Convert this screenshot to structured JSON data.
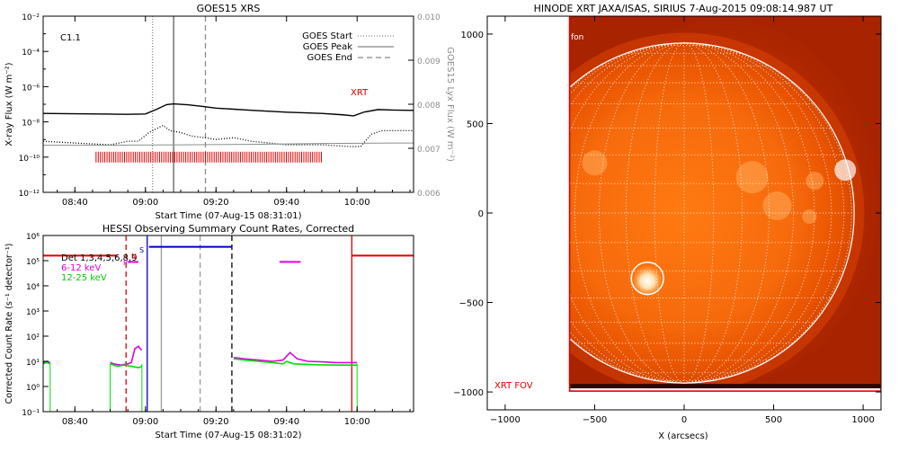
{
  "colors": {
    "axis": "#000000",
    "goes_lo": "#000000",
    "goes_hi": "#000000",
    "lyx": "#8c8c8c",
    "xrt_marks": "#e00000",
    "red": "#e00000",
    "magenta": "#e000e0",
    "green": "#00e000",
    "blue": "#0000cc",
    "gray": "#9a9a9a",
    "sun_outer": "#a82400",
    "sun_mid": "#e24a00",
    "sun_inner": "#ff7a10",
    "grid": "#ffffff"
  },
  "chart_data": [
    {
      "id": "goes",
      "type": "line",
      "title": "GOES15 XRS",
      "xlabel": "Start Time (07-Aug-15 08:31:01)",
      "ylabel": "X-ray Flux (W m⁻²)",
      "y2label": "GOES15 Lyx Flux (W m⁻²)",
      "x_unit": "minutes after 08:00",
      "xlim": [
        31,
        136
      ],
      "x_ticks": [
        40,
        60,
        80,
        100,
        120
      ],
      "x_tick_labels": [
        "08:40",
        "09:00",
        "09:20",
        "09:40",
        "10:00"
      ],
      "ylim_log": [
        -12,
        -2
      ],
      "y_ticks": [
        -12,
        -10,
        -8,
        -6,
        -4,
        -2
      ],
      "y_tick_labels": [
        "10⁻¹²",
        "10⁻¹⁰",
        "10⁻⁸",
        "10⁻⁶",
        "10⁻⁴",
        "10⁻²"
      ],
      "y2lim": [
        0.006,
        0.01
      ],
      "y2_ticks": [
        0.006,
        0.007,
        0.008,
        0.009,
        0.01
      ],
      "y2_tick_labels": [
        "0.006",
        "0.007",
        "0.008",
        "0.009",
        "0.010"
      ],
      "annotation_class": "C1.1",
      "annotation_xrt": "XRT",
      "legend": [
        "GOES Start",
        "GOES Peak",
        "GOES End"
      ],
      "vlines": [
        {
          "x": 62,
          "style": "dotted"
        },
        {
          "x": 68,
          "style": "solid"
        },
        {
          "x": 77,
          "style": "dashed"
        }
      ],
      "series": [
        {
          "id": "goes_long",
          "style": "solid",
          "x": [
            31,
            40,
            50,
            55,
            60,
            63,
            66,
            68,
            72,
            76,
            80,
            90,
            100,
            110,
            116,
            119,
            122,
            126,
            130,
            136
          ],
          "y": [
            -7.52,
            -7.54,
            -7.56,
            -7.57,
            -7.55,
            -7.3,
            -7.02,
            -6.98,
            -7.03,
            -7.12,
            -7.22,
            -7.34,
            -7.45,
            -7.52,
            -7.6,
            -7.66,
            -7.44,
            -7.3,
            -7.33,
            -7.35
          ]
        },
        {
          "id": "goes_short",
          "style": "dotted",
          "x": [
            31,
            40,
            50,
            55,
            58,
            61,
            63,
            65,
            67,
            70,
            73,
            77,
            80,
            85,
            90,
            95,
            100,
            105,
            110,
            118,
            121,
            124,
            127,
            130,
            136
          ],
          "y": [
            -9.1,
            -9.2,
            -9.3,
            -9.1,
            -9.1,
            -8.6,
            -8.4,
            -8.2,
            -8.5,
            -8.6,
            -8.8,
            -8.9,
            -9.0,
            -8.9,
            -9.1,
            -9.2,
            -9.3,
            -9.3,
            -9.3,
            -9.4,
            -9.4,
            -8.7,
            -8.5,
            -8.5,
            -8.5
          ]
        },
        {
          "id": "lyx",
          "style": "solid-gray",
          "axis": "y2",
          "x": [
            31,
            50,
            70,
            90,
            110,
            130,
            136
          ],
          "y": [
            0.00707,
            0.00707,
            0.00708,
            0.00709,
            0.00711,
            0.00712,
            0.00712
          ]
        }
      ],
      "xrt_coverage": {
        "y_log": -10.0,
        "x_start": 46,
        "x_end": 110,
        "spacing_minutes": 0.62
      }
    },
    {
      "id": "hessi",
      "type": "line",
      "title": "HESSI Observing Summary Count Rates, Corrected",
      "xlabel": "Start Time (07-Aug-15 08:31:02)",
      "ylabel": "Corrected Count Rate (s⁻¹ detector⁻¹)",
      "x_unit": "minutes after 08:00",
      "xlim": [
        31,
        136
      ],
      "x_ticks": [
        40,
        60,
        80,
        100,
        120
      ],
      "x_tick_labels": [
        "08:40",
        "09:00",
        "09:20",
        "09:40",
        "10:00"
      ],
      "ylim_log": [
        -1,
        6
      ],
      "y_ticks": [
        -1,
        0,
        1,
        2,
        3,
        4,
        5,
        6
      ],
      "y_tick_labels": [
        "10⁻¹",
        "10⁰",
        "10¹",
        "10²",
        "10³",
        "10⁴",
        "10⁵",
        "10⁶"
      ],
      "legend": [
        "Det 1,3,4,5,6,8,9",
        "6-12 keV",
        "12-25 keV"
      ],
      "flag_letters": {
        "p": "P",
        "n": "N",
        "s": "S"
      },
      "series": [
        {
          "id": "h_6_12",
          "name": "6-12 keV",
          "segments": [
            {
              "x": [
                31,
                32,
                33
              ],
              "y": [
                0.95,
                1.0,
                0.95
              ]
            },
            {
              "x": [
                50,
                51,
                53,
                55,
                56,
                57,
                57.5,
                58,
                58.5,
                59
              ],
              "y": [
                0.95,
                0.9,
                0.85,
                0.9,
                0.95,
                1.5,
                1.55,
                1.6,
                1.5,
                1.45
              ]
            },
            {
              "x": [
                85,
                88,
                92,
                96,
                99,
                101,
                103,
                106,
                110,
                114,
                118,
                120
              ],
              "y": [
                1.15,
                1.1,
                1.05,
                1.0,
                1.05,
                1.35,
                1.1,
                1.0,
                0.98,
                0.95,
                0.95,
                0.95
              ]
            }
          ]
        },
        {
          "id": "h_12_25",
          "name": "12-25 keV",
          "segments": [
            {
              "x": [
                31,
                32,
                33
              ],
              "y": [
                0.9,
                0.95,
                0.9
              ]
            },
            {
              "x": [
                50,
                52,
                54,
                56,
                58,
                59
              ],
              "y": [
                0.9,
                0.8,
                0.85,
                0.8,
                0.75,
                0.8
              ]
            },
            {
              "x": [
                85,
                88,
                92,
                96,
                99,
                100,
                102,
                105,
                110,
                115,
                120
              ],
              "y": [
                1.1,
                1.05,
                1.0,
                0.95,
                0.9,
                1.0,
                0.9,
                0.88,
                0.86,
                0.85,
                0.85
              ]
            }
          ]
        }
      ],
      "drops": [
        33,
        50,
        59,
        120
      ],
      "vlines": [
        {
          "x": 54.5,
          "style": "dashed",
          "color": "red"
        },
        {
          "x": 60.5,
          "style": "solid",
          "color": "blue"
        },
        {
          "x": 64.5,
          "style": "solid",
          "color": "gray"
        },
        {
          "x": 75.5,
          "style": "dashed",
          "color": "gray"
        },
        {
          "x": 84.5,
          "style": "dashed",
          "color": "black"
        },
        {
          "x": 118.5,
          "style": "solid",
          "color": "red"
        }
      ],
      "flag_bars": [
        {
          "color": "red",
          "x": [
            31,
            52
          ],
          "y_log": 5.2
        },
        {
          "color": "blue",
          "x": [
            61,
            84.5
          ],
          "y_log": 5.55
        },
        {
          "color": "magenta",
          "x": [
            55,
            58
          ],
          "y_log": 4.95
        },
        {
          "color": "magenta",
          "x": [
            98,
            104
          ],
          "y_log": 4.95
        },
        {
          "color": "red",
          "x": [
            118.5,
            136
          ],
          "y_log": 5.2
        }
      ]
    },
    {
      "id": "xrt",
      "type": "scatter",
      "title": "HINODE XRT JAXA/ISAS, SIRIUS   7-Aug-2015 09:08:14.987 UT",
      "xlabel": "X (arcsecs)",
      "xlim": [
        -1100,
        1100
      ],
      "ylim": [
        -1100,
        1100
      ],
      "x_ticks": [
        -1000,
        -500,
        0,
        500,
        1000
      ],
      "x_tick_labels": [
        "−1000",
        "−500",
        "0",
        "500",
        "1000"
      ],
      "y_ticks": [
        -1000,
        -500,
        0,
        500,
        1000
      ],
      "y_tick_labels": [
        "−1000",
        "−500",
        "0",
        "500",
        "1000"
      ],
      "solar_radius": 950,
      "grid_step_deg": 10,
      "fov_label": "XRT FOV",
      "fov_box": {
        "x0": -640,
        "x1": 1100,
        "y0": -995,
        "y1": 1100
      },
      "image_box": {
        "x0": -640,
        "x1": 1100,
        "y0": -980,
        "y1": 1100
      },
      "corner_label": "fon",
      "highlight": {
        "x": -205,
        "y": -365,
        "r": 90
      }
    }
  ]
}
